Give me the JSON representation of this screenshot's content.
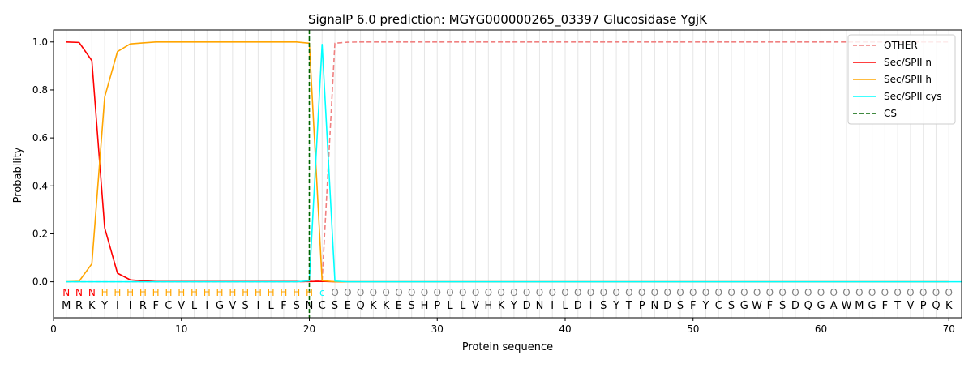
{
  "chart_data": {
    "type": "line",
    "title": "SignalP 6.0 prediction: MGYG000000265_03397 Glucosidase YgjK",
    "xlabel": "Protein sequence",
    "ylabel": "Probability",
    "xlim": [
      0,
      71
    ],
    "ylim": [
      -0.15,
      1.05
    ],
    "x_ticks": [
      0,
      10,
      20,
      30,
      40,
      50,
      60,
      70
    ],
    "y_ticks": [
      0.0,
      0.2,
      0.4,
      0.6,
      0.8,
      1.0
    ],
    "grid": "vertical lines at each residue",
    "legend_position": "top-right",
    "sequence": [
      "M",
      "R",
      "K",
      "Y",
      "I",
      "I",
      "R",
      "F",
      "C",
      "V",
      "L",
      "I",
      "G",
      "V",
      "S",
      "I",
      "L",
      "F",
      "S",
      "N",
      "C",
      "S",
      "E",
      "Q",
      "K",
      "K",
      "E",
      "S",
      "H",
      "P",
      "L",
      "L",
      "V",
      "H",
      "K",
      "Y",
      "D",
      "N",
      "I",
      "L",
      "D",
      "I",
      "S",
      "Y",
      "T",
      "P",
      "N",
      "D",
      "S",
      "F",
      "Y",
      "C",
      "S",
      "G",
      "W",
      "F",
      "S",
      "D",
      "Q",
      "G",
      "A",
      "W",
      "M",
      "G",
      "F",
      "T",
      "V",
      "P",
      "Q",
      "K"
    ],
    "predicted_labels": [
      "N",
      "N",
      "N",
      "H",
      "H",
      "H",
      "H",
      "H",
      "H",
      "H",
      "H",
      "H",
      "H",
      "H",
      "H",
      "H",
      "H",
      "H",
      "H",
      "H",
      "c",
      "O",
      "O",
      "O",
      "O",
      "O",
      "O",
      "O",
      "O",
      "O",
      "O",
      "O",
      "O",
      "O",
      "O",
      "O",
      "O",
      "O",
      "O",
      "O",
      "O",
      "O",
      "O",
      "O",
      "O",
      "O",
      "O",
      "O",
      "O",
      "O",
      "O",
      "O",
      "O",
      "O",
      "O",
      "O",
      "O",
      "O",
      "O",
      "O",
      "O",
      "O",
      "O",
      "O",
      "O",
      "O",
      "O",
      "O",
      "O",
      "O"
    ],
    "label_colors": {
      "N": "#ff0000",
      "H": "#ffa500",
      "c": "#00ffff",
      "O": "#808080"
    },
    "series": [
      {
        "name": "OTHER",
        "color": "#f08080",
        "dash": "dashed",
        "x_start": 1,
        "values": [
          0,
          0,
          0,
          0,
          0,
          0,
          0,
          0,
          0,
          0,
          0,
          0,
          0,
          0,
          0,
          0,
          0,
          0,
          0,
          0.001,
          0.005,
          0.995,
          0.999,
          1,
          1,
          1,
          1,
          1,
          1,
          1,
          1,
          1,
          1,
          1,
          1,
          1,
          1,
          1,
          1,
          1,
          1,
          1,
          1,
          1,
          1,
          1,
          1,
          1,
          1,
          1,
          1,
          1,
          1,
          1,
          1,
          1,
          1,
          1,
          1,
          1,
          1,
          1,
          1,
          1,
          1,
          1,
          1,
          1,
          1,
          1
        ]
      },
      {
        "name": "Sec/SPII n",
        "color": "#ff0000",
        "dash": "solid",
        "x_start": 1,
        "values": [
          1.0,
          0.998,
          0.922,
          0.225,
          0.036,
          0.008,
          0.004,
          0.001,
          0.001,
          0.001,
          0.001,
          0.001,
          0.001,
          0.001,
          0.001,
          0.001,
          0.001,
          0.001,
          0.001,
          0.001,
          0.002,
          0,
          0,
          0,
          0,
          0,
          0,
          0,
          0,
          0,
          0,
          0,
          0,
          0,
          0,
          0,
          0,
          0,
          0,
          0,
          0,
          0,
          0,
          0,
          0,
          0,
          0,
          0,
          0,
          0,
          0,
          0,
          0,
          0,
          0,
          0,
          0,
          0,
          0,
          0,
          0,
          0,
          0,
          0,
          0,
          0,
          0,
          0,
          0,
          0
        ]
      },
      {
        "name": "Sec/SPII h",
        "color": "#ffa500",
        "dash": "solid",
        "x_start": 1,
        "values": [
          0,
          0.002,
          0.075,
          0.77,
          0.96,
          0.992,
          0.996,
          1.0,
          1.0,
          1.0,
          1.0,
          1.0,
          1.0,
          1.0,
          1.0,
          1.0,
          1.0,
          1.0,
          1.0,
          0.995,
          0.005,
          0,
          0,
          0,
          0,
          0,
          0,
          0,
          0,
          0,
          0,
          0,
          0,
          0,
          0,
          0,
          0,
          0,
          0,
          0,
          0,
          0,
          0,
          0,
          0,
          0,
          0,
          0,
          0,
          0,
          0,
          0,
          0,
          0,
          0,
          0,
          0,
          0,
          0,
          0,
          0,
          0,
          0,
          0,
          0,
          0,
          0,
          0,
          0,
          0
        ]
      },
      {
        "name": "Sec/SPII cys",
        "color": "#00ffff",
        "dash": "solid",
        "x_start": 1,
        "values": [
          0,
          0,
          0,
          0,
          0,
          0,
          0,
          0,
          0,
          0,
          0,
          0,
          0,
          0,
          0,
          0,
          0,
          0,
          0,
          0.004,
          0.99,
          0.003,
          0,
          0,
          0,
          0,
          0,
          0,
          0,
          0,
          0,
          0,
          0,
          0,
          0,
          0,
          0,
          0,
          0,
          0,
          0,
          0,
          0,
          0,
          0,
          0,
          0,
          0,
          0,
          0,
          0,
          0,
          0,
          0,
          0,
          0,
          0,
          0,
          0,
          0,
          0,
          0,
          0,
          0,
          0,
          0,
          0,
          0,
          0,
          0,
          0
        ]
      }
    ],
    "cleavage_site": {
      "name": "CS",
      "x": 20,
      "color": "#006400",
      "dash": "dashed"
    }
  }
}
